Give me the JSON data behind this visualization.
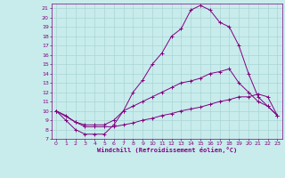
{
  "xlabel": "Windchill (Refroidissement éolien,°C)",
  "bg_color": "#c8ecec",
  "line_color": "#800080",
  "grid_color": "#aad4d4",
  "xlim": [
    -0.5,
    23.5
  ],
  "ylim": [
    7,
    21.5
  ],
  "yticks": [
    7,
    8,
    9,
    10,
    11,
    12,
    13,
    14,
    15,
    16,
    17,
    18,
    19,
    20,
    21
  ],
  "xticks": [
    0,
    1,
    2,
    3,
    4,
    5,
    6,
    7,
    8,
    9,
    10,
    11,
    12,
    13,
    14,
    15,
    16,
    17,
    18,
    19,
    20,
    21,
    22,
    23
  ],
  "line1_x": [
    0,
    1,
    2,
    3,
    4,
    5,
    6,
    7,
    8,
    9,
    10,
    11,
    12,
    13,
    14,
    15,
    16,
    17,
    18,
    19,
    20,
    21,
    22,
    23
  ],
  "line1_y": [
    10.0,
    9.0,
    8.0,
    7.5,
    7.5,
    7.5,
    8.5,
    10.0,
    12.0,
    13.3,
    15.0,
    16.2,
    18.0,
    18.8,
    20.8,
    21.3,
    20.8,
    19.5,
    19.0,
    17.0,
    14.0,
    11.5,
    10.5,
    9.5
  ],
  "line2_x": [
    0,
    2,
    3,
    4,
    5,
    6,
    7,
    8,
    9,
    10,
    11,
    12,
    13,
    14,
    15,
    16,
    17,
    18,
    19,
    20,
    21,
    22,
    23
  ],
  "line2_y": [
    10.0,
    8.8,
    8.5,
    8.5,
    8.5,
    9.0,
    10.0,
    10.5,
    11.0,
    11.5,
    12.0,
    12.5,
    13.0,
    13.2,
    13.5,
    14.0,
    14.2,
    14.5,
    13.0,
    12.0,
    11.0,
    10.5,
    9.5
  ],
  "line3_x": [
    0,
    1,
    2,
    3,
    4,
    5,
    6,
    7,
    8,
    9,
    10,
    11,
    12,
    13,
    14,
    15,
    16,
    17,
    18,
    19,
    20,
    21,
    22,
    23
  ],
  "line3_y": [
    10.0,
    9.5,
    8.8,
    8.3,
    8.3,
    8.3,
    8.3,
    8.5,
    8.7,
    9.0,
    9.2,
    9.5,
    9.7,
    10.0,
    10.2,
    10.4,
    10.7,
    11.0,
    11.2,
    11.5,
    11.5,
    11.8,
    11.5,
    9.5
  ]
}
